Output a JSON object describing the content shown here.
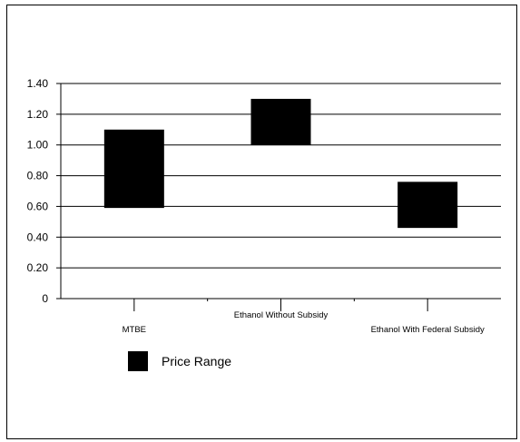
{
  "chart_data": {
    "type": "floating-bar",
    "categories": [
      "MTBE",
      "Ethanol Without Subsidy",
      "Ethanol With Federal Subsidy"
    ],
    "series": [
      {
        "name": "Price Range",
        "low": [
          0.59,
          1.0,
          0.46
        ],
        "high": [
          1.1,
          1.3,
          0.76
        ]
      }
    ],
    "yticks": [
      "0",
      "0.20",
      "0.40",
      "0.60",
      "0.80",
      "1.00",
      "1.20",
      "1.40"
    ],
    "ylim": [
      0,
      1.4
    ],
    "grid": true,
    "legend": "bottom-left",
    "colors": {
      "bar": "#000000",
      "grid": "#000000"
    }
  }
}
